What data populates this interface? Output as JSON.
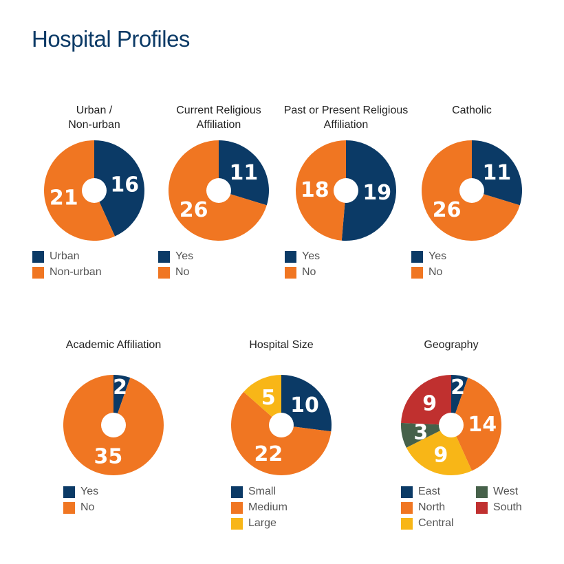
{
  "page_title": "Hospital Profiles",
  "colors": {
    "navy": "#0b3a66",
    "orange": "#f07622",
    "yellow": "#f8b617",
    "green": "#46614a",
    "red": "#c0302f"
  },
  "chart_data": [
    {
      "type": "pie",
      "title": "Urban /\nNon-urban",
      "slices": [
        {
          "label": "Urban",
          "value": 16,
          "color": "#0b3a66"
        },
        {
          "label": "Non-urban",
          "value": 21,
          "color": "#f07622"
        }
      ]
    },
    {
      "type": "pie",
      "title": "Current Religious\nAffiliation",
      "slices": [
        {
          "label": "Yes",
          "value": 11,
          "color": "#0b3a66"
        },
        {
          "label": "No",
          "value": 26,
          "color": "#f07622"
        }
      ]
    },
    {
      "type": "pie",
      "title": "Past or Present Religious\nAffiliation",
      "slices": [
        {
          "label": "Yes",
          "value": 19,
          "color": "#0b3a66"
        },
        {
          "label": "No",
          "value": 18,
          "color": "#f07622"
        }
      ]
    },
    {
      "type": "pie",
      "title": "Catholic",
      "slices": [
        {
          "label": "Yes",
          "value": 11,
          "color": "#0b3a66"
        },
        {
          "label": "No",
          "value": 26,
          "color": "#f07622"
        }
      ]
    },
    {
      "type": "pie",
      "title": "Academic Affiliation",
      "slices": [
        {
          "label": "Yes",
          "value": 2,
          "color": "#0b3a66"
        },
        {
          "label": "No",
          "value": 35,
          "color": "#f07622"
        }
      ]
    },
    {
      "type": "pie",
      "title": "Hospital Size",
      "slices": [
        {
          "label": "Small",
          "value": 10,
          "color": "#0b3a66"
        },
        {
          "label": "Medium",
          "value": 22,
          "color": "#f07622"
        },
        {
          "label": "Large",
          "value": 5,
          "color": "#f8b617"
        }
      ]
    },
    {
      "type": "pie",
      "title": "Geography",
      "slices": [
        {
          "label": "East",
          "value": 2,
          "color": "#0b3a66"
        },
        {
          "label": "North",
          "value": 14,
          "color": "#f07622"
        },
        {
          "label": "Central",
          "value": 9,
          "color": "#f8b617"
        },
        {
          "label": "West",
          "value": 3,
          "color": "#46614a"
        },
        {
          "label": "South",
          "value": 9,
          "color": "#c0302f"
        }
      ]
    }
  ]
}
